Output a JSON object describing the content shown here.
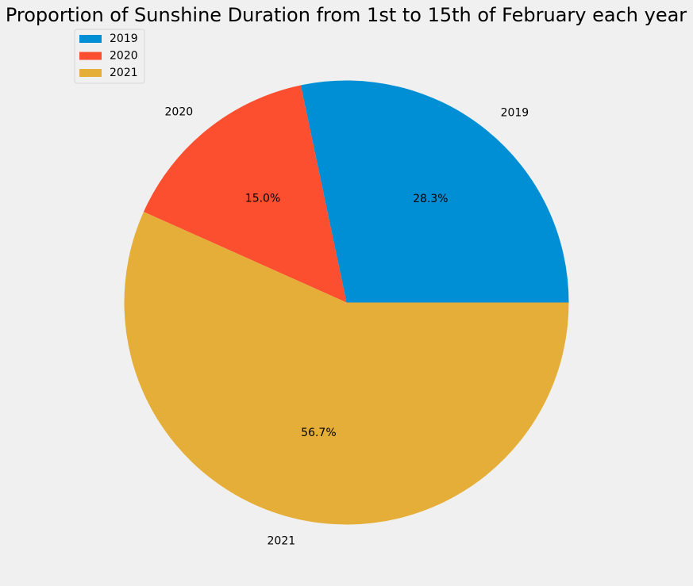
{
  "chart_data": {
    "type": "pie",
    "title": "Proportion of Sunshine Duration from 1st to 15th of February each year",
    "categories": [
      "2019",
      "2020",
      "2021"
    ],
    "values": [
      28.3,
      15.0,
      56.7
    ],
    "percent_labels": [
      "28.3%",
      "15.0%",
      "56.7%"
    ],
    "colors": [
      "#008fd5",
      "#fc4f30",
      "#e5ae38"
    ],
    "start_angle": 0,
    "direction": "counterclockwise",
    "legend": {
      "placement": "top-left",
      "entries": [
        "2019",
        "2020",
        "2021"
      ]
    }
  }
}
